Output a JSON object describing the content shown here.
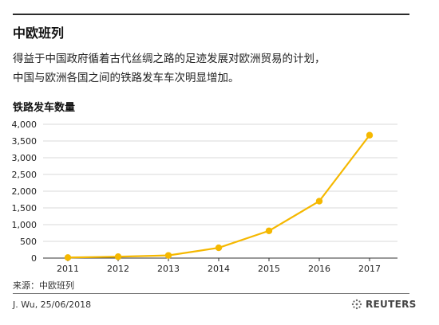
{
  "header": {
    "title": "中欧班列",
    "description_line1": "得益于中国政府循着古代丝绸之路的足迹发展对欧洲贸易的计划，",
    "description_line2": "中国与欧洲各国之间的铁路发车车次明显增加。"
  },
  "chart_data": {
    "type": "line",
    "title": "中欧班列",
    "ylabel": "铁路发车数量",
    "xlabel": "",
    "x": [
      "2011",
      "2012",
      "2013",
      "2014",
      "2015",
      "2016",
      "2017"
    ],
    "series": [
      {
        "values": [
          17,
          42,
          80,
          308,
          815,
          1702,
          3673
        ]
      }
    ],
    "ylim": [
      0,
      4000
    ],
    "yticks": [
      0,
      500,
      1000,
      1500,
      2000,
      2500,
      3000,
      3500,
      4000
    ],
    "ytick_labels": [
      "0",
      "500",
      "1,000",
      "1,500",
      "2,000",
      "2,500",
      "3,000",
      "3,500",
      "4,000"
    ],
    "grid": "horizontal",
    "line_color": "#f5b800"
  },
  "footer": {
    "source": "来源：中欧班列",
    "credit": "J. Wu,  25/06/2018",
    "brand": "REUTERS",
    "brand_icon": "reuters-logo-icon"
  }
}
